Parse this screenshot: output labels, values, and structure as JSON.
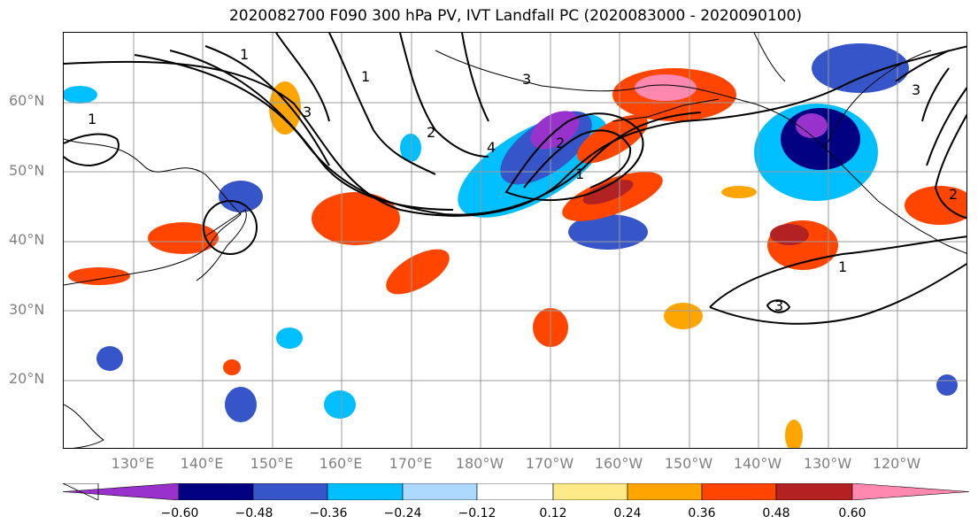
{
  "title": "2020082700 F090 300 hPa PV, IVT Landfall PC (2020083000 - 2020090100)",
  "lat_labels": [
    "60°N",
    "50°N",
    "40°N",
    "30°N",
    "20°N"
  ],
  "lon_labels": [
    "130°E",
    "140°E",
    "150°E",
    "160°E",
    "170°E",
    "180°W",
    "170°W",
    "160°W",
    "150°W",
    "140°W",
    "130°W",
    "120°W"
  ],
  "contour_labels": [
    "1",
    "2",
    "3",
    "4",
    "1",
    "2",
    "3",
    "1",
    "1",
    "1",
    "3",
    "2",
    "3"
  ],
  "colorbar": {
    "ticks": [
      "−0.60",
      "−0.48",
      "−0.36",
      "−0.24",
      "−0.12",
      "0.12",
      "0.24",
      "0.36",
      "0.48",
      "0.60"
    ],
    "colors": [
      "#9932CC",
      "#000080",
      "#3655C8",
      "#00BFFF",
      "#ADD8FF",
      "#FFFFFF",
      "#FFEA8A",
      "#FFA500",
      "#FF4500",
      "#B22222",
      "#FF88B0"
    ]
  }
}
